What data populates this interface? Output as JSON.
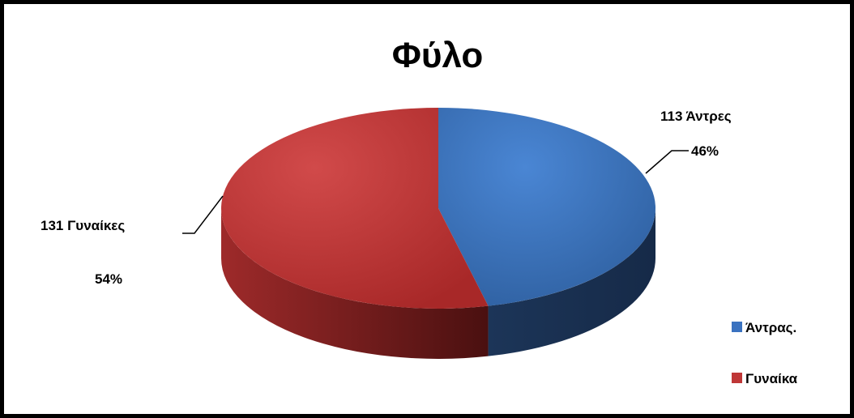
{
  "chart_data": {
    "type": "pie",
    "title": "Φύλο",
    "slices": [
      {
        "name": "Άντρας.",
        "value": 113,
        "count_label": "113 Άντρες",
        "percent_label": "46%",
        "color": "#3a72c0",
        "dark_color": "#1a2d4d"
      },
      {
        "name": "Γυναίκα",
        "value": 131,
        "count_label": "131 Γυναίκες",
        "percent_label": "54%",
        "color": "#bf3737",
        "dark_color": "#5a1515"
      }
    ],
    "legend": {
      "position": "right",
      "entries": [
        "Άντρας.",
        "Γυναίκα"
      ]
    },
    "style": "3d-pie"
  }
}
